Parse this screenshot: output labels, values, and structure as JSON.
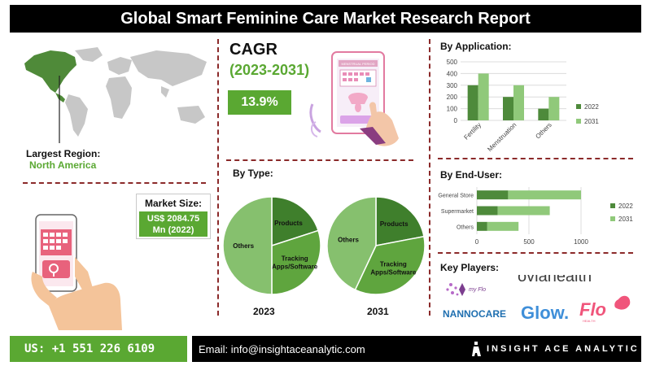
{
  "header": {
    "title": "Global Smart Feminine Care Market Research Report"
  },
  "region": {
    "label": "Largest Region:",
    "value": "North America"
  },
  "cagr": {
    "title": "CAGR",
    "years": "(2023-2031)",
    "value": "13.9%"
  },
  "market_size": {
    "label": "Market Size:",
    "line1": "US$ 2084.75",
    "line2": "Mn (2022)"
  },
  "sections": {
    "by_application": "By Application:",
    "by_type": "By Type:",
    "by_end_user": "By End-User:",
    "key_players": "Key Players:"
  },
  "illustration": {
    "phone_screen_title": "MENSTRUAL PERIOD"
  },
  "key_players": {
    "myflo": "my Flo",
    "oviahealth": "oviahealth",
    "nannocare": "NANNOCARE",
    "glow": "Glow.",
    "flo": "Flo",
    "flo_sub": "HEALTH"
  },
  "footer": {
    "phone": "US: +1 551 226 6109",
    "email": "Email: info@insightaceanalytic.com",
    "brand": "INSIGHT ACE ANALYTIC"
  },
  "colors": {
    "accent_green": "#5aa832",
    "dark_green": "#4e8a3b",
    "light_green": "#90c97a",
    "pie_dark": "#3f7f2c",
    "pie_mid": "#5fa53e",
    "pie_light": "#86c06e",
    "divider": "#8b2a2a"
  },
  "chart_data": [
    {
      "id": "by_application",
      "type": "bar",
      "categories": [
        "Fertility",
        "Menstruation",
        "Others"
      ],
      "series": [
        {
          "name": "2022",
          "values": [
            300,
            200,
            100
          ]
        },
        {
          "name": "2031",
          "values": [
            400,
            300,
            200
          ]
        }
      ],
      "ylim": [
        0,
        500
      ],
      "yticks": [
        0,
        100,
        200,
        300,
        400,
        500
      ],
      "legend": "right"
    },
    {
      "id": "by_end_user",
      "type": "bar",
      "orientation": "horizontal",
      "categories": [
        "General Store",
        "Supermarket",
        "Others"
      ],
      "series": [
        {
          "name": "2022",
          "values": [
            300,
            200,
            100
          ]
        },
        {
          "name": "2031",
          "values": [
            700,
            500,
            300
          ]
        }
      ],
      "xlim": [
        0,
        1000
      ],
      "xticks": [
        0,
        500,
        1000
      ],
      "legend": "right"
    },
    {
      "id": "by_type_2023",
      "type": "pie",
      "title": "2023",
      "slices": [
        {
          "label": "Products",
          "value": 20
        },
        {
          "label": "Tracking Apps/Software",
          "value": 30
        },
        {
          "label": "Others",
          "value": 50
        }
      ]
    },
    {
      "id": "by_type_2031",
      "type": "pie",
      "title": "2031",
      "slices": [
        {
          "label": "Products",
          "value": 22
        },
        {
          "label": "Tracking Apps/Software",
          "value": 35
        },
        {
          "label": "Others",
          "value": 43
        }
      ]
    }
  ]
}
